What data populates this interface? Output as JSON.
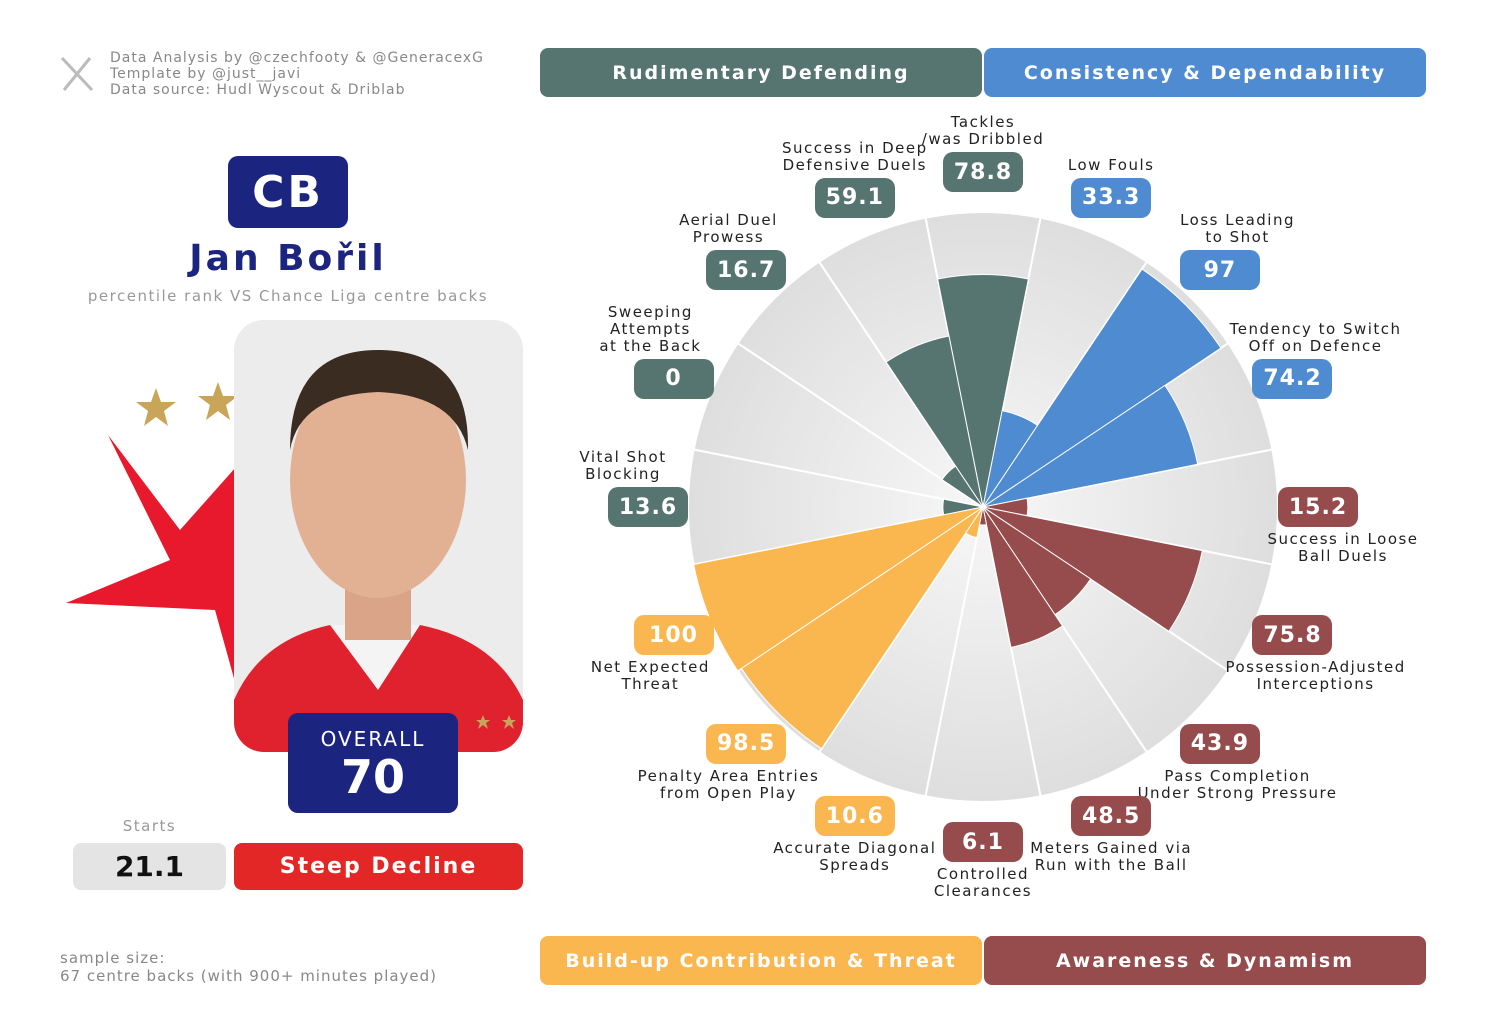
{
  "credits": {
    "lines": [
      "Data Analysis by @czechfooty & @GeneracexG",
      "Template by @just__javi",
      "Data source: Hudl Wyscout & Driblab"
    ]
  },
  "player": {
    "position": "CB",
    "name": "Jan Bořil",
    "subtitle": "percentile rank VS Chance Liga centre backs",
    "overall_label": "OVERALL",
    "overall": 70,
    "starts_label": "Starts",
    "starts": 21.1,
    "trend": "Steep Decline"
  },
  "footer": {
    "sample_size_label": "sample size:",
    "sample_size": "67 centre backs (with 900+ minutes played)"
  },
  "chart_data": {
    "type": "radial_bar",
    "categories": [
      "Tackles\n/was Dribbled",
      "Low Fouls",
      "Loss Leading\nto Shot",
      "Tendency to Switch\nOff on Defence",
      "Success in Loose\nBall Duels",
      "Possession-Adjusted\nInterceptions",
      "Pass Completion\nUnder Strong Pressure",
      "Meters Gained via\nRun with the Ball",
      "Controlled\nClearances",
      "Accurate Diagonal\nSpreads",
      "Penalty Area Entries\nfrom Open Play",
      "Net Expected\nThreat",
      "Vital Shot\nBlocking",
      "Sweeping\nAttempts\nat the Back",
      "Aerial Duel\nProwess",
      "Success in Deep\nDefensive Duels"
    ],
    "series": [
      {
        "name": "Rudimentary Defending",
        "color": "#577570",
        "values": [
          78.8,
          null,
          null,
          null,
          null,
          null,
          null,
          null,
          null,
          null,
          null,
          null,
          13.6,
          0,
          16.7,
          59.1
        ]
      },
      {
        "name": "Consistency & Dependability",
        "color": "#4f8bd0",
        "values": [
          null,
          33.3,
          97,
          74.2,
          null,
          null,
          null,
          null,
          null,
          null,
          null,
          null,
          null,
          null,
          null,
          null
        ]
      },
      {
        "name": "Build-up Contribution & Threat",
        "color": "#fbb74f",
        "values": [
          null,
          null,
          null,
          null,
          null,
          null,
          null,
          null,
          null,
          10.6,
          98.5,
          100,
          null,
          null,
          null,
          null
        ]
      },
      {
        "name": "Awareness & Dynamism",
        "color": "#964c4c",
        "values": [
          null,
          null,
          null,
          null,
          15.2,
          75.8,
          43.9,
          48.5,
          6.1,
          null,
          null,
          null,
          null,
          null,
          null,
          null
        ]
      }
    ],
    "ylim": [
      0,
      100
    ]
  }
}
